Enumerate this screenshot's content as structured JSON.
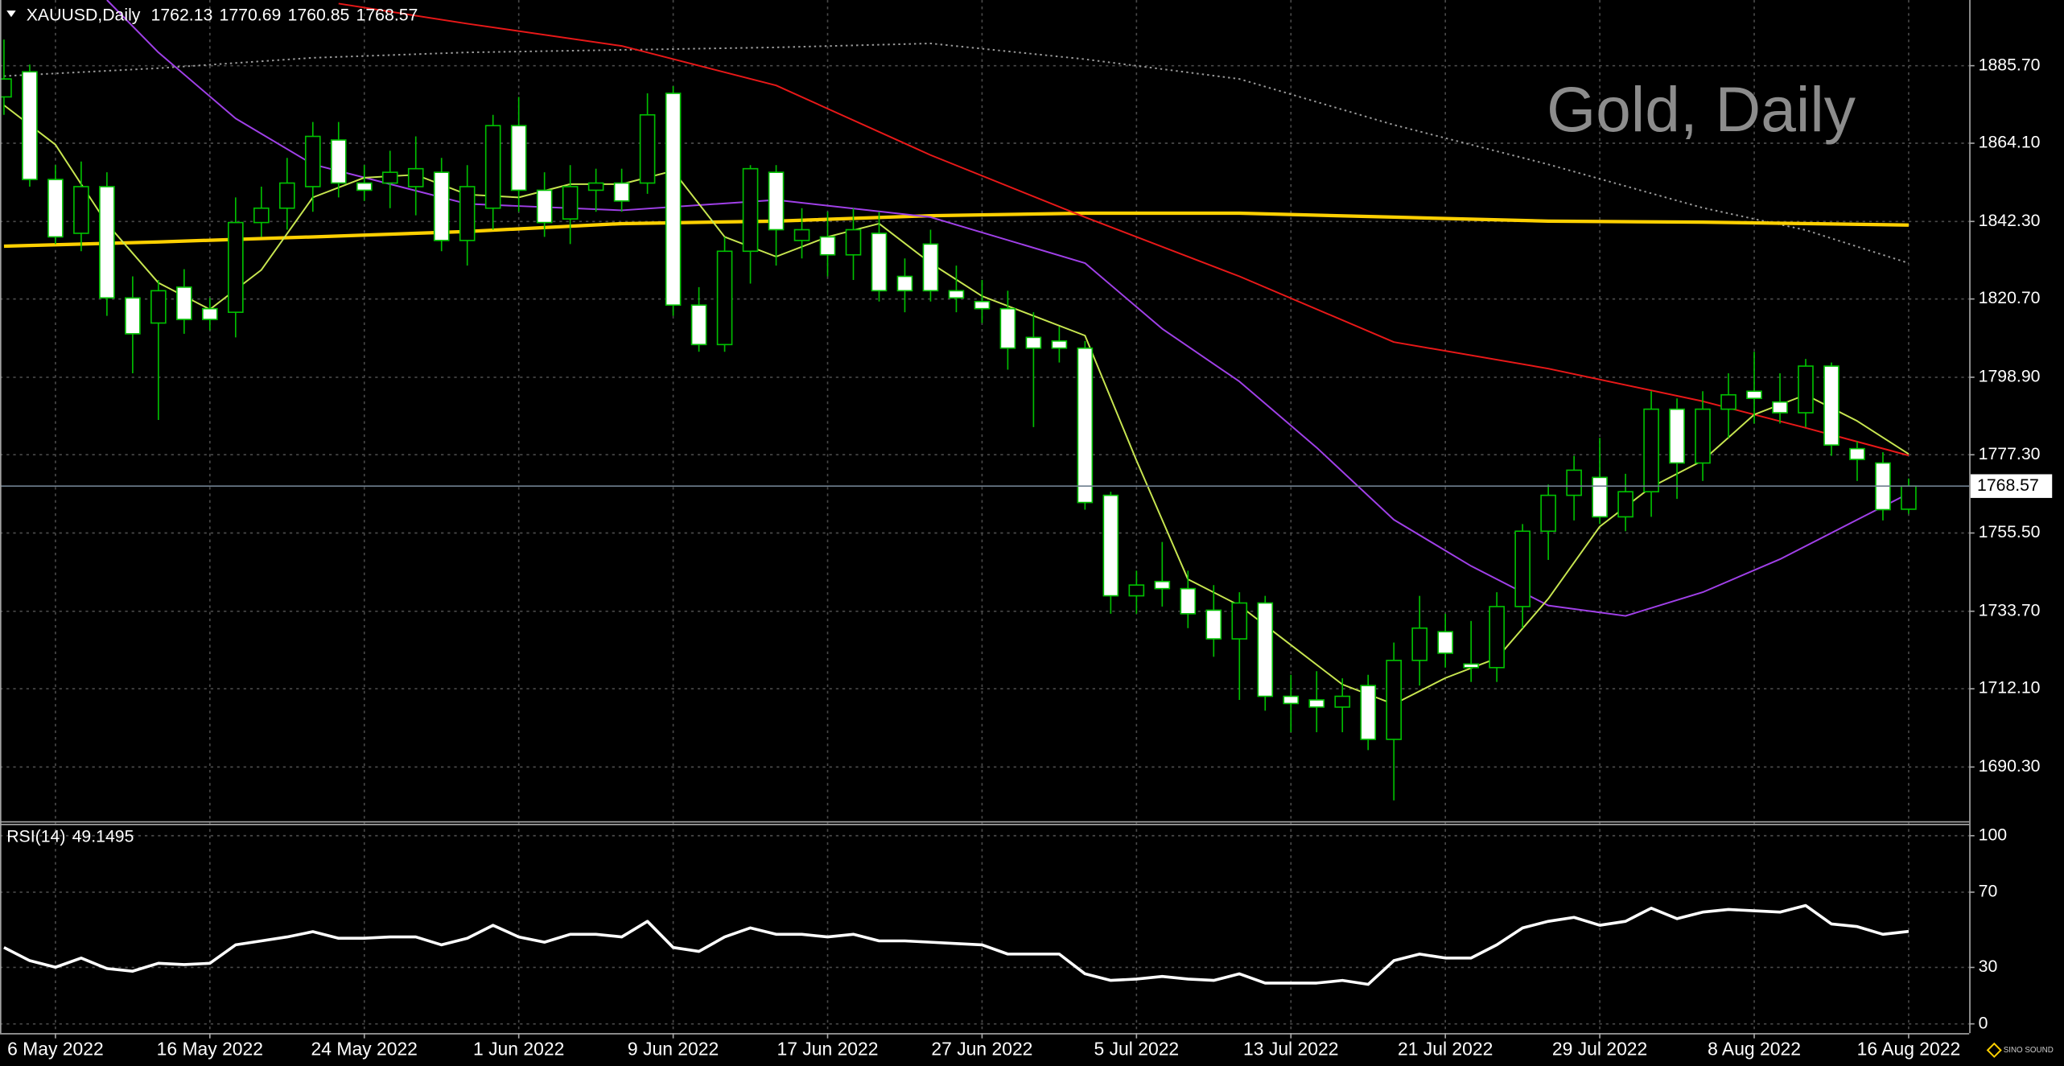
{
  "chart_data": [
    {
      "type": "candlestick",
      "symbol": "XAUUSD,Daily",
      "watermark": "Gold, Daily",
      "logo": "SINO SOUND",
      "up_color": "#000000",
      "down_color": "#ffffff",
      "wick_color": "#00c000",
      "grid": true,
      "categories": [
        null,
        null,
        "6 May 2022",
        null,
        null,
        null,
        null,
        null,
        "16 May 2022",
        null,
        null,
        null,
        null,
        null,
        "24 May 2022",
        null,
        null,
        null,
        null,
        null,
        "1 Jun 2022",
        null,
        null,
        null,
        null,
        null,
        "9 Jun 2022",
        null,
        null,
        null,
        null,
        null,
        "17 Jun 2022",
        null,
        null,
        null,
        null,
        null,
        "27 Jun 2022",
        null,
        null,
        null,
        null,
        null,
        "5 Jul 2022",
        null,
        null,
        null,
        null,
        null,
        "13 Jul 2022",
        null,
        null,
        null,
        null,
        null,
        "21 Jul 2022",
        null,
        null,
        null,
        null,
        null,
        "29 Jul 2022",
        null,
        null,
        null,
        null,
        null,
        "8 Aug 2022",
        null,
        null,
        null,
        null,
        null,
        "16 Aug 2022"
      ],
      "open": [
        1877,
        1884,
        1854,
        1839,
        1852,
        1821,
        1814,
        1824,
        1818,
        1817,
        1842,
        1846,
        1852,
        1865,
        1853,
        1853,
        1852,
        1856,
        1837,
        1846,
        1869,
        1851,
        1843,
        1851,
        1853,
        1853,
        1878,
        1819,
        1808,
        1834,
        1856,
        1837,
        1838,
        1833,
        1839,
        1827,
        1836,
        1823,
        1820,
        1818,
        1810,
        1809,
        1807,
        1766,
        1738,
        1742,
        1740,
        1734,
        1726,
        1736,
        1710,
        1709,
        1707,
        1713,
        1698,
        1720,
        1728,
        1719,
        1718,
        1735,
        1756,
        1766,
        1771,
        1760,
        1767,
        1790,
        1775,
        1790,
        1795,
        1792,
        1789,
        1802,
        1779,
        1775,
        1762.13
      ],
      "high": [
        1893,
        1886,
        1858,
        1859,
        1856,
        1827,
        1826,
        1829,
        1821,
        1849,
        1852,
        1860,
        1870,
        1870,
        1858,
        1862,
        1866,
        1860,
        1858,
        1872,
        1877,
        1856,
        1858,
        1857,
        1857,
        1878,
        1880,
        1824,
        1838,
        1858,
        1858,
        1846,
        1845,
        1846,
        1845,
        1832,
        1840,
        1830,
        1826,
        1823,
        1817,
        1813,
        1809,
        1767,
        1745,
        1753,
        1745,
        1741,
        1739,
        1738,
        1716,
        1717,
        1715,
        1716,
        1725,
        1738,
        1733,
        1731,
        1739,
        1758,
        1769,
        1777,
        1782,
        1772,
        1795,
        1793,
        1795,
        1800,
        1806,
        1800,
        1804,
        1803,
        1781,
        1778,
        1770.69
      ],
      "low": [
        1872,
        1852,
        1836,
        1834,
        1816,
        1800,
        1787,
        1811,
        1812,
        1810,
        1838,
        1840,
        1845,
        1849,
        1848,
        1846,
        1844,
        1834,
        1830,
        1840,
        1845,
        1838,
        1836,
        1845,
        1845,
        1850,
        1816,
        1806,
        1806,
        1825,
        1830,
        1832,
        1827,
        1826,
        1820,
        1817,
        1820,
        1817,
        1814,
        1801,
        1785,
        1803,
        1762,
        1733,
        1733,
        1735,
        1729,
        1721,
        1709,
        1706,
        1700,
        1700,
        1700,
        1695,
        1681,
        1713,
        1718,
        1714,
        1714,
        1729,
        1748,
        1759,
        1758,
        1756,
        1760,
        1765,
        1770,
        1782,
        1786,
        1786,
        1785,
        1777,
        1770,
        1759,
        1760.85
      ],
      "close": [
        1882,
        1854,
        1838,
        1852,
        1821,
        1811,
        1823,
        1815,
        1815,
        1842,
        1846,
        1853,
        1866,
        1853,
        1851,
        1856,
        1857,
        1837,
        1852,
        1869,
        1851,
        1842,
        1852,
        1853,
        1848,
        1872,
        1819,
        1808,
        1834,
        1857,
        1840,
        1840,
        1833,
        1840,
        1823,
        1823,
        1823,
        1821,
        1818,
        1807,
        1807,
        1807,
        1764,
        1738,
        1741,
        1740,
        1733,
        1726,
        1736,
        1710,
        1708,
        1707,
        1710,
        1698,
        1720,
        1729,
        1722,
        1718,
        1735,
        1756,
        1766,
        1773,
        1760,
        1767,
        1790,
        1775,
        1790,
        1794,
        1793,
        1789,
        1802,
        1780,
        1776,
        1762,
        1768.57
      ],
      "series": [
        {
          "color": "#9a9a9a",
          "style": "dotted",
          "x": [
            0,
            6,
            12,
            18,
            24,
            30,
            36,
            42,
            48,
            54,
            60,
            66,
            70,
            74
          ],
          "values": [
            1882.8,
            1885.0,
            1887.9,
            1889.4,
            1890.1,
            1890.8,
            1891.9,
            1887.5,
            1882.0,
            1869.2,
            1858.2,
            1846.1,
            1839.9,
            1830.7
          ]
        },
        {
          "color": "#ffd000",
          "style": "thick",
          "x": [
            0,
            6,
            12,
            18,
            24,
            30,
            36,
            42,
            48,
            54,
            60,
            66,
            74
          ],
          "values": [
            1835.4,
            1836.6,
            1838.0,
            1839.5,
            1841.7,
            1842.4,
            1843.9,
            1844.6,
            1844.6,
            1843.5,
            1842.4,
            1842.1,
            1841.3
          ]
        },
        {
          "color": "#e81818",
          "style": "thin",
          "x": [
            13,
            18,
            24,
            30,
            36,
            42,
            48,
            54,
            60,
            66,
            70,
            74
          ],
          "values": [
            1903.0,
            1897.4,
            1891.2,
            1880.2,
            1860.8,
            1843.5,
            1827.0,
            1808.7,
            1801.3,
            1792.2,
            1784.8,
            1777.1
          ]
        },
        {
          "color": "#a040e8",
          "style": "thin",
          "x": [
            4,
            6,
            9,
            12,
            18,
            24,
            30,
            36,
            42,
            45,
            48,
            51,
            54,
            57,
            60,
            63,
            66,
            69,
            72,
            74
          ],
          "values": [
            1904.0,
            1889.4,
            1871.0,
            1858.2,
            1847.2,
            1845.4,
            1848.3,
            1843.5,
            1830.7,
            1812.4,
            1797.7,
            1779.3,
            1759.2,
            1746.3,
            1735.3,
            1732.4,
            1739.0,
            1748.2,
            1759.2,
            1766.5
          ]
        },
        {
          "color": "#c8e650",
          "style": "thin",
          "x": [
            0,
            2,
            4,
            6,
            8,
            10,
            12,
            14,
            16,
            18,
            20,
            22,
            24,
            26,
            28,
            30,
            32,
            34,
            36,
            38,
            40,
            42,
            44,
            46,
            48,
            50,
            52,
            54,
            56,
            58,
            60,
            62,
            64,
            66,
            68,
            70,
            72,
            74
          ],
          "values": [
            1874.7,
            1863.7,
            1841.7,
            1825.2,
            1817.8,
            1828.8,
            1849.0,
            1854.5,
            1855.3,
            1849.8,
            1849.0,
            1852.7,
            1852.7,
            1856.4,
            1838.0,
            1832.5,
            1838.0,
            1841.7,
            1830.7,
            1821.5,
            1816.0,
            1810.5,
            1775.7,
            1742.6,
            1735.3,
            1724.3,
            1713.3,
            1707.8,
            1715.1,
            1720.6,
            1737.2,
            1757.3,
            1768.3,
            1775.7,
            1788.5,
            1794.0,
            1786.7,
            1777.5
          ]
        }
      ],
      "ylim": [
        1675.2,
        1904.0
      ],
      "yticks": [
        {
          "value": 1885.7,
          "label": "1885.70"
        },
        {
          "value": 1864.1,
          "label": "1864.10"
        },
        {
          "value": 1842.3,
          "label": "1842.30"
        },
        {
          "value": 1820.7,
          "label": "1820.70"
        },
        {
          "value": 1798.9,
          "label": "1798.90"
        },
        {
          "value": 1777.3,
          "label": "1777.30"
        },
        {
          "value": 1755.5,
          "label": "1755.50"
        },
        {
          "value": 1733.7,
          "label": "1733.70"
        },
        {
          "value": 1712.1,
          "label": "1712.10"
        },
        {
          "value": 1690.3,
          "label": "1690.30"
        }
      ]
    },
    {
      "type": "line",
      "title": "RSI(14)",
      "series": [
        {
          "color": "#ffffff",
          "values": [
            40.6,
            33.6,
            30.1,
            35.0,
            29.4,
            28.0,
            32.2,
            31.5,
            32.2,
            42.0,
            44.1,
            46.2,
            49.0,
            45.5,
            45.5,
            46.2,
            46.2,
            42.0,
            45.5,
            52.4,
            46.2,
            43.4,
            47.6,
            47.6,
            46.2,
            54.5,
            40.6,
            38.5,
            46.2,
            51.0,
            47.6,
            47.6,
            46.2,
            47.6,
            44.1,
            44.1,
            43.4,
            42.7,
            42.0,
            37.1,
            37.1,
            37.1,
            26.6,
            23.1,
            23.8,
            25.2,
            23.8,
            23.1,
            26.6,
            21.7,
            21.7,
            21.7,
            23.1,
            21.0,
            33.6,
            37.1,
            35.0,
            35.0,
            42.0,
            51.0,
            54.5,
            56.6,
            52.4,
            54.5,
            61.5,
            55.9,
            59.4,
            60.8,
            60.1,
            59.4,
            62.9,
            53.1,
            51.7,
            47.6,
            49.1495
          ]
        }
      ],
      "ylim": [
        -4.9,
        106.3
      ],
      "yticks": [
        0,
        30,
        70,
        100
      ]
    }
  ]
}
